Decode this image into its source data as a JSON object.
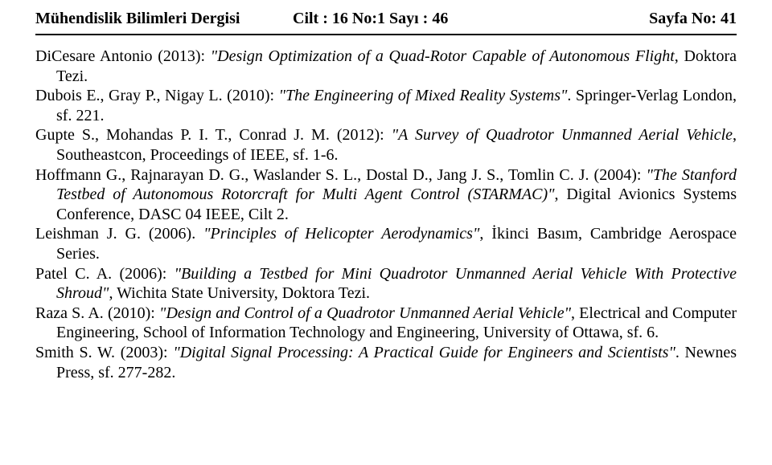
{
  "header": {
    "journal": "Mühendislik Bilimleri Dergisi",
    "issue": "Cilt : 16 No:1 Sayı : 46",
    "page": "Sayfa No: 41"
  },
  "refs": {
    "r1a": "DiCesare Antonio (2013): ",
    "r1t": "\"Design Optimization of a Quad-Rotor Capable of Autonomous Flight",
    "r1b": ", Doktora Tezi.",
    "r2a": "Dubois E., Gray P., Nigay L. (2010): ",
    "r2t": "\"The Engineering of Mixed Reality Systems\"",
    "r2b": ". Springer-Verlag London, sf. 221.",
    "r3a": "Gupte S., Mohandas P. I. T., Conrad J. M. (2012): ",
    "r3t": "\"A Survey of Quadrotor Unmanned Aerial Vehicle",
    "r3b": ", Southeastcon, Proceedings of IEEE, sf. 1-6.",
    "r4a": "Hoffmann G., Rajnarayan D. G., Waslander S. L., Dostal D., Jang J. S., Tomlin C. J. (2004): ",
    "r4t": "\"The Stanford Testbed of Autonomous Rotorcraft for Multi Agent Control (STARMAC)\"",
    "r4b": ", Digital Avionics Systems Conference, DASC 04 IEEE, Cilt 2.",
    "r5a": "Leishman J. G. (2006). ",
    "r5t": "\"Principles of Helicopter Aerodynamics\"",
    "r5b": ", İkinci Basım, Cambridge Aerospace Series.",
    "r6a": "Patel C. A. (2006): ",
    "r6t": "\"Building a Testbed for Mini Quadrotor Unmanned Aerial Vehicle With Protective Shroud\"",
    "r6b": ", Wichita State University, Doktora Tezi.",
    "r7a": "Raza S. A. (2010): ",
    "r7t": "\"Design and Control of a Quadrotor Unmanned Aerial Vehicle\"",
    "r7b": ", Electrical and Computer Engineering, School of Information Technology and Engineering, University of Ottawa, sf. 6.",
    "r8a": "Smith S. W. (2003): ",
    "r8t": "\"Digital Signal Processing: A Practical Guide for Engineers and Scientists\"",
    "r8b": ". Newnes Press, sf. 277-282."
  }
}
